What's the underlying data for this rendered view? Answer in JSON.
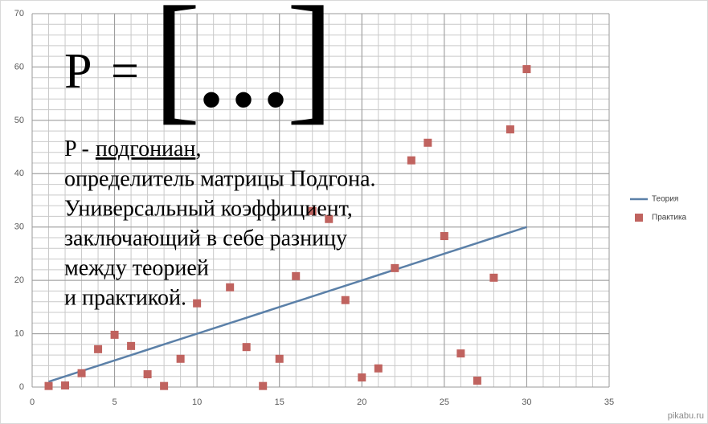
{
  "chart_data": {
    "type": "combo",
    "xlim": [
      0,
      35
    ],
    "xticks": [
      0,
      5,
      10,
      15,
      20,
      25,
      30,
      35
    ],
    "ylim": [
      0,
      70
    ],
    "yticks": [
      0,
      10,
      20,
      30,
      40,
      50,
      60,
      70
    ],
    "grid": true,
    "minor_grid": {
      "x": 1,
      "y": 2
    },
    "legend": "right",
    "series": [
      {
        "name": "Теория",
        "type": "line",
        "color": "#5b80a8",
        "x": [
          1,
          2,
          3,
          4,
          5,
          6,
          7,
          8,
          9,
          10,
          11,
          12,
          13,
          14,
          15,
          16,
          17,
          18,
          19,
          20,
          21,
          22,
          23,
          24,
          25,
          26,
          27,
          28,
          29,
          30
        ],
        "values": [
          1,
          2,
          3,
          4,
          5,
          6,
          7,
          8,
          9,
          10,
          11,
          12,
          13,
          14,
          15,
          16,
          17,
          18,
          19,
          20,
          21,
          22,
          23,
          24,
          25,
          26,
          27,
          28,
          29,
          30
        ]
      },
      {
        "name": "Практика",
        "type": "scatter",
        "color": "#c0635f",
        "x": [
          1,
          2,
          3,
          4,
          5,
          6,
          7,
          8,
          9,
          10,
          12,
          13,
          14,
          15,
          16,
          17,
          18,
          19,
          20,
          21,
          22,
          23,
          24,
          25,
          26,
          27,
          28,
          29,
          30
        ],
        "values": [
          0.2,
          0.3,
          2.6,
          7.1,
          9.8,
          7.7,
          2.4,
          0.2,
          5.3,
          15.7,
          18.7,
          7.5,
          0.2,
          5.3,
          20.8,
          33,
          31.5,
          16.3,
          1.8,
          3.5,
          22.3,
          42.5,
          45.8,
          28.3,
          6.3,
          1.2,
          20.5,
          48.3,
          59.6
        ]
      }
    ],
    "annotations": {
      "formula": [
        "P",
        "=",
        "[",
        "...",
        "]"
      ],
      "first_line": [
        "P -",
        "подгониан",
        ","
      ],
      "lines": [
        "определитель матрицы Подгона.",
        "Универсальный коэффициент,",
        "заключающий в себе разницу",
        "между теорией",
        "и практикой."
      ]
    },
    "watermark": "pikabu.ru"
  }
}
